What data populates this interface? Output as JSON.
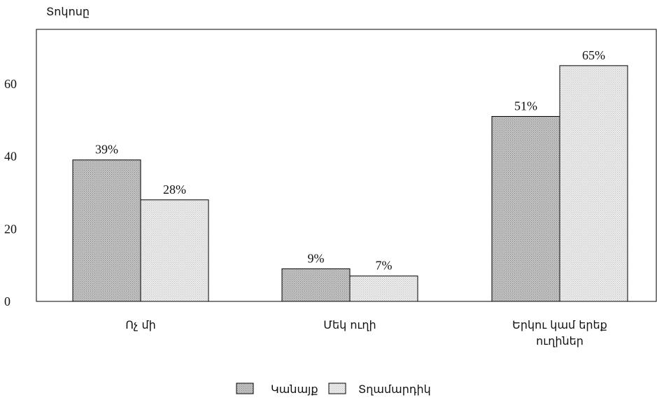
{
  "chart_data": {
    "type": "bar",
    "ylabel": "Տոկոսը",
    "ylim": [
      0,
      75
    ],
    "yticks": [
      0,
      20,
      40,
      60
    ],
    "grid": false,
    "legend_position": "bottom-center",
    "categories": [
      [
        "Ոչ մի"
      ],
      [
        "Մեկ ուղի"
      ],
      [
        "Երկու կամ երեք",
        "ուղիներ"
      ]
    ],
    "series": [
      {
        "name": "Կանայք",
        "values": [
          39,
          9,
          51
        ],
        "labels": [
          "39%",
          "9%",
          "51%"
        ],
        "color": "#bdbdbd"
      },
      {
        "name": "Տղամարդիկ",
        "values": [
          28,
          7,
          65
        ],
        "labels": [
          "28%",
          "7%",
          "65%"
        ],
        "color": "#e4e4e4"
      }
    ]
  }
}
